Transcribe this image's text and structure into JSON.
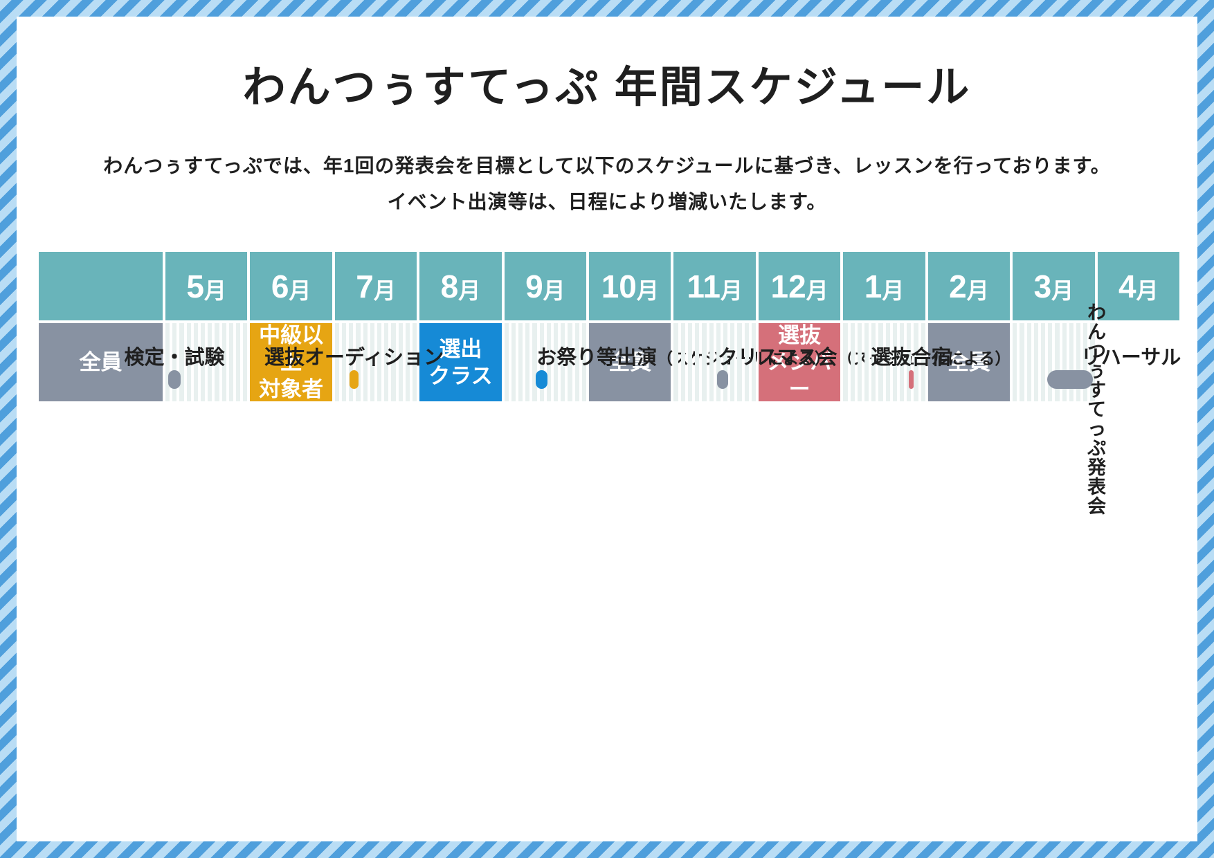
{
  "page": {
    "title": "わんつぅすてっぷ 年間スケジュール",
    "description_line1": "わんつぅすてっぷでは、年1回の発表会を目標として以下のスケジュールに基づき、レッスンを行っております。",
    "description_line2": "イベント出演等は、日程により増減いたします。"
  },
  "palette": {
    "border_stripe_light": "#b9ddf5",
    "border_stripe_dark": "#4f9fdc",
    "month_header_teal": "#69b4ba",
    "grid_cell_bg": "#e8f0ef",
    "gridline_white": "#ffffff",
    "group_gray": "#8892a2",
    "group_orange": "#e6a513",
    "group_blue": "#168ad6",
    "group_red": "#d5707a",
    "text_dark": "#1f1f1f",
    "text_on_color": "#ffffff"
  },
  "chart_data": {
    "type": "gantt",
    "title": "わんつぅすてっぷ 年間スケジュール",
    "x_unit": "month (fiscal year starting May, index 0 = start of 5月)",
    "x_categories": [
      {
        "n": "5",
        "u": "月"
      },
      {
        "n": "6",
        "u": "月"
      },
      {
        "n": "7",
        "u": "月"
      },
      {
        "n": "8",
        "u": "月"
      },
      {
        "n": "9",
        "u": "月"
      },
      {
        "n": "10",
        "u": "月"
      },
      {
        "n": "11",
        "u": "月"
      },
      {
        "n": "12",
        "u": "月"
      },
      {
        "n": "1",
        "u": "月"
      },
      {
        "n": "2",
        "u": "月"
      },
      {
        "n": "3",
        "u": "月"
      },
      {
        "n": "4",
        "u": "月"
      }
    ],
    "legend_position": "none",
    "grid": true,
    "rows": [
      {
        "group": "全員",
        "color": "#8892a2",
        "event": "検定・試験",
        "note": "",
        "start": 0.45,
        "end": 2.2,
        "approx_period": "5月中旬〜7月上旬",
        "label": {
          "align": "center"
        }
      },
      {
        "group": "中級以上\n対象者",
        "color": "#e6a513",
        "event": "選抜オーディション",
        "note": "",
        "start": 2.13,
        "end": 3.48,
        "approx_period": "7月上旬〜8月中旬",
        "label": {
          "align": "center"
        }
      },
      {
        "group": "選出\nクラス",
        "color": "#168ad6",
        "event": "お祭り等出演",
        "note": "（スケジュールによる）",
        "start": 4.6,
        "end": 6.27,
        "approx_period": "9月中旬〜11月上旬",
        "label": {
          "align": "left",
          "left_pct": 39.2
        }
      },
      {
        "group": "全員",
        "color": "#8892a2",
        "event": "クリスマス会",
        "note": "（スケジュールによる）",
        "start": 6.3,
        "end": 7.91,
        "approx_period": "11月中旬〜12月下旬",
        "label": {
          "align": "left",
          "left_pct": 53.3
        }
      },
      {
        "group": "選抜\nメンバー",
        "color": "#d5707a",
        "event": "選抜合宿",
        "note": "",
        "start": 9.6,
        "end": 10.27,
        "approx_period": "2月下旬〜3月上旬",
        "label": {
          "align": "center"
        }
      },
      {
        "group": "全員",
        "color": "#8892a2",
        "event": "リハーサル",
        "note": "",
        "start": 5.07,
        "end": 11.78,
        "approx_period": "10月上旬〜4月下旬",
        "label": {
          "align": "left",
          "left_pct": 83.3
        },
        "finale": "わんつぅ\nすてっぷ\n発表会"
      }
    ]
  }
}
